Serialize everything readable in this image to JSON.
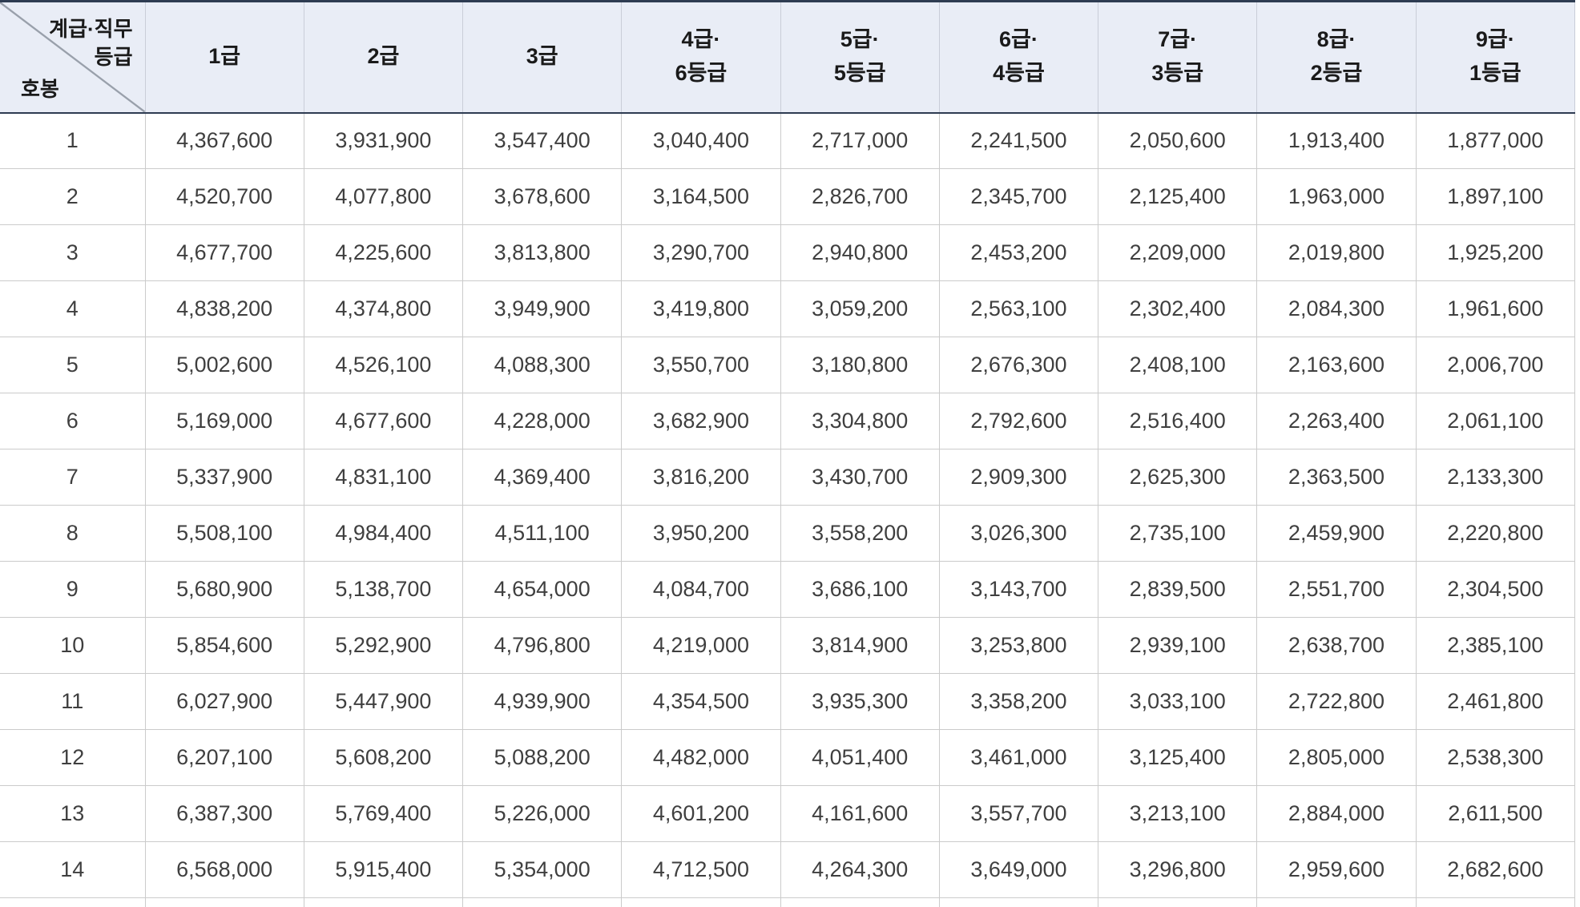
{
  "header": {
    "corner": {
      "class_label_line1": "계급·직무",
      "class_label_line2": "등급",
      "row_label": "호봉"
    },
    "columns": [
      {
        "line1": "1급",
        "line2": ""
      },
      {
        "line1": "2급",
        "line2": ""
      },
      {
        "line1": "3급",
        "line2": ""
      },
      {
        "line1": "4급·",
        "line2": "6등급"
      },
      {
        "line1": "5급·",
        "line2": "5등급"
      },
      {
        "line1": "6급·",
        "line2": "4등급"
      },
      {
        "line1": "7급·",
        "line2": "3등급"
      },
      {
        "line1": "8급·",
        "line2": "2등급"
      },
      {
        "line1": "9급·",
        "line2": "1등급"
      }
    ]
  },
  "rows": [
    {
      "step": "1",
      "values": [
        "4,367,600",
        "3,931,900",
        "3,547,400",
        "3,040,400",
        "2,717,000",
        "2,241,500",
        "2,050,600",
        "1,913,400",
        "1,877,000"
      ]
    },
    {
      "step": "2",
      "values": [
        "4,520,700",
        "4,077,800",
        "3,678,600",
        "3,164,500",
        "2,826,700",
        "2,345,700",
        "2,125,400",
        "1,963,000",
        "1,897,100"
      ]
    },
    {
      "step": "3",
      "values": [
        "4,677,700",
        "4,225,600",
        "3,813,800",
        "3,290,700",
        "2,940,800",
        "2,453,200",
        "2,209,000",
        "2,019,800",
        "1,925,200"
      ]
    },
    {
      "step": "4",
      "values": [
        "4,838,200",
        "4,374,800",
        "3,949,900",
        "3,419,800",
        "3,059,200",
        "2,563,100",
        "2,302,400",
        "2,084,300",
        "1,961,600"
      ]
    },
    {
      "step": "5",
      "values": [
        "5,002,600",
        "4,526,100",
        "4,088,300",
        "3,550,700",
        "3,180,800",
        "2,676,300",
        "2,408,100",
        "2,163,600",
        "2,006,700"
      ]
    },
    {
      "step": "6",
      "values": [
        "5,169,000",
        "4,677,600",
        "4,228,000",
        "3,682,900",
        "3,304,800",
        "2,792,600",
        "2,516,400",
        "2,263,400",
        "2,061,100"
      ]
    },
    {
      "step": "7",
      "values": [
        "5,337,900",
        "4,831,100",
        "4,369,400",
        "3,816,200",
        "3,430,700",
        "2,909,300",
        "2,625,300",
        "2,363,500",
        "2,133,300"
      ]
    },
    {
      "step": "8",
      "values": [
        "5,508,100",
        "4,984,400",
        "4,511,100",
        "3,950,200",
        "3,558,200",
        "3,026,300",
        "2,735,100",
        "2,459,900",
        "2,220,800"
      ]
    },
    {
      "step": "9",
      "values": [
        "5,680,900",
        "5,138,700",
        "4,654,000",
        "4,084,700",
        "3,686,100",
        "3,143,700",
        "2,839,500",
        "2,551,700",
        "2,304,500"
      ]
    },
    {
      "step": "10",
      "values": [
        "5,854,600",
        "5,292,900",
        "4,796,800",
        "4,219,000",
        "3,814,900",
        "3,253,800",
        "2,939,100",
        "2,638,700",
        "2,385,100"
      ]
    },
    {
      "step": "11",
      "values": [
        "6,027,900",
        "5,447,900",
        "4,939,900",
        "4,354,500",
        "3,935,300",
        "3,358,200",
        "3,033,100",
        "2,722,800",
        "2,461,800"
      ]
    },
    {
      "step": "12",
      "values": [
        "6,207,100",
        "5,608,200",
        "5,088,200",
        "4,482,000",
        "4,051,400",
        "3,461,000",
        "3,125,400",
        "2,805,000",
        "2,538,300"
      ]
    },
    {
      "step": "13",
      "values": [
        "6,387,300",
        "5,769,400",
        "5,226,000",
        "4,601,200",
        "4,161,600",
        "3,557,700",
        "3,213,100",
        "2,884,000",
        "2,611,500"
      ]
    },
    {
      "step": "14",
      "values": [
        "6,568,000",
        "5,915,400",
        "5,354,000",
        "4,712,500",
        "4,264,300",
        "3,649,000",
        "3,296,800",
        "2,959,600",
        "2,682,600"
      ]
    }
  ],
  "partial_row_visible": true,
  "colors": {
    "dark_border": "#2e3c52",
    "header_bg": "#e9edf6",
    "grid_border": "#cbcbcb",
    "header_text": "#1a1a1a",
    "cell_text": "#3f3f3f",
    "diagonal_line": "#99a0ab"
  }
}
